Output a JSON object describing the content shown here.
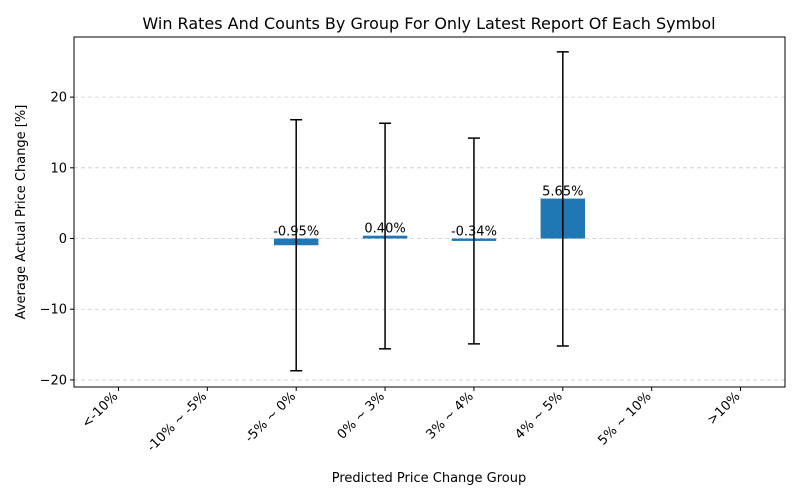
{
  "chart_data": {
    "type": "bar",
    "title": "Win Rates And Counts By Group For Only Latest Report Of Each Symbol",
    "xlabel": "Predicted Price Change Group",
    "ylabel": "Average Actual Price Change [%]",
    "categories": [
      "<-10%",
      "-10% ~ -5%",
      "-5% ~ 0%",
      "0% ~ 3%",
      "3% ~ 4%",
      "4% ~ 5%",
      "5% ~ 10%",
      ">10%"
    ],
    "values": [
      null,
      null,
      -0.95,
      0.4,
      -0.34,
      5.65,
      null,
      null
    ],
    "data_labels": [
      "",
      "",
      "-0.95%",
      "0.40%",
      "-0.34%",
      "5.65%",
      "",
      ""
    ],
    "error_low": [
      null,
      null,
      -18.7,
      -15.6,
      -14.9,
      -15.2,
      null,
      null
    ],
    "error_high": [
      null,
      null,
      16.8,
      16.3,
      14.2,
      26.4,
      null,
      null
    ],
    "ylim": [
      -21,
      28.5
    ],
    "yticks": [
      -20,
      -10,
      0,
      10,
      20
    ],
    "ytick_labels": [
      "−20",
      "−10",
      "0",
      "10",
      "20"
    ],
    "grid": "y-dashed",
    "bar_color": "#1f77b4"
  }
}
